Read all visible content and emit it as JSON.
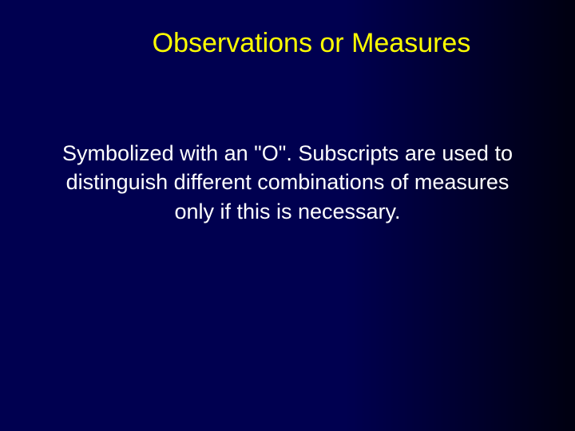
{
  "slide": {
    "title": "Observations or Measures",
    "body": "Symbolized with an \"O\". Subscripts are used to distinguish different combinations of measures only if this is necessary.",
    "background_gradient_start": "#000050",
    "background_gradient_end": "#000010",
    "title_color": "#ffff00",
    "title_fontsize": 34,
    "body_color": "#ffffff",
    "body_fontsize": 27,
    "font_family": "Arial"
  }
}
